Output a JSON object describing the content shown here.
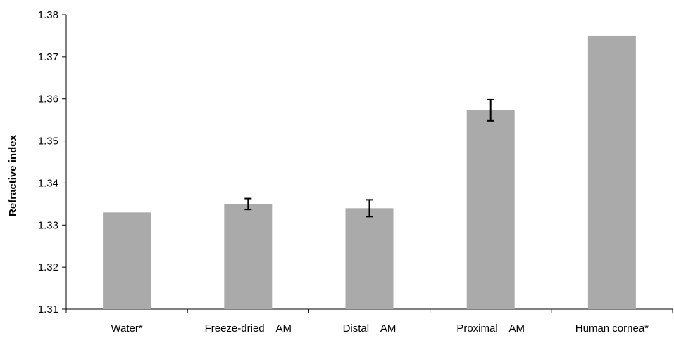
{
  "chart_data": {
    "type": "bar",
    "categories": [
      "Water*",
      "Freeze-dried    AM",
      "Distal    AM",
      "Proximal    AM",
      "Human cornea*"
    ],
    "values": [
      1.333,
      1.335,
      1.334,
      1.3573,
      1.375
    ],
    "error": [
      null,
      0.0013,
      0.002,
      0.0025,
      null
    ],
    "ylabel": "Refractive index",
    "xlabel": "",
    "ylim": [
      1.31,
      1.38
    ],
    "yticks": [
      1.31,
      1.32,
      1.33,
      1.34,
      1.35,
      1.36,
      1.37,
      1.38
    ],
    "ytick_labels": [
      "1.31",
      "1.32",
      "1.33",
      "1.34",
      "1.35",
      "1.36",
      "1.37",
      "1.38"
    ],
    "grid": false,
    "legend": "none",
    "bar_color": "#aaaaaa"
  }
}
